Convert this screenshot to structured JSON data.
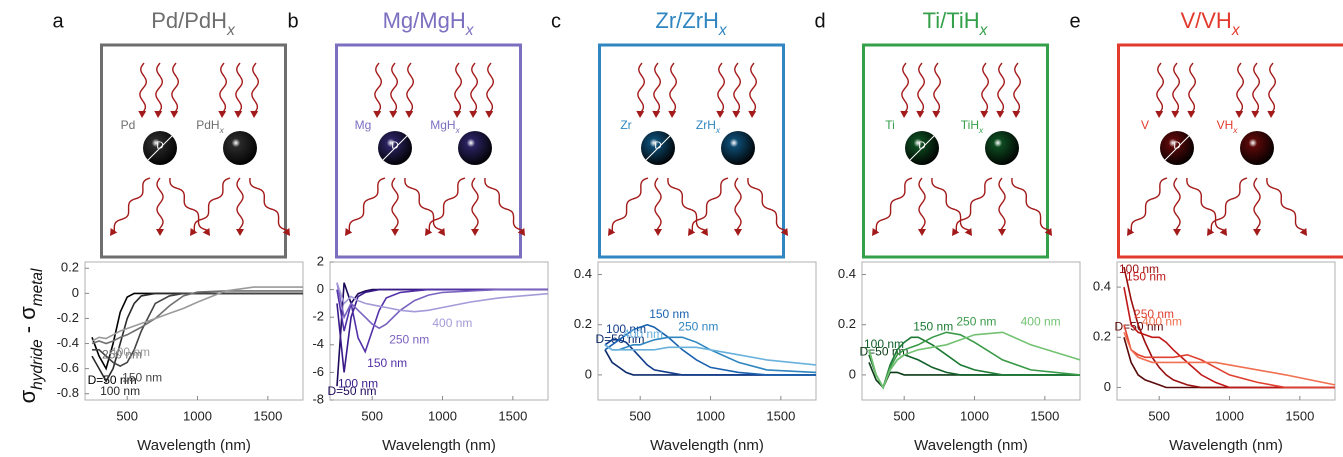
{
  "chart_data": [
    {
      "type": "line",
      "panel": "a",
      "title": [
        {
          "text": "Pd/PdH"
        },
        {
          "text": "x",
          "sub": true
        }
      ],
      "box_color": "#6e6e6e",
      "sphere_color": "#2a2a2a",
      "illustration": {
        "metal_label": "Pd",
        "hydride_label": [
          {
            "text": "PdH"
          },
          {
            "text": "x",
            "sub": true
          }
        ],
        "diameter_label": "D"
      },
      "ylabel": [
        {
          "text": "σ"
        },
        {
          "text": "hydride",
          "sub": true
        },
        {
          "text": " - σ"
        },
        {
          "text": "metal",
          "sub": true
        }
      ],
      "xlabel": "Wavelength (nm)",
      "xlim": [
        200,
        1750
      ],
      "xticks": [
        500,
        1000,
        1500
      ],
      "ylim": [
        -0.85,
        0.25
      ],
      "yticks": [
        0.2,
        0,
        -0.2,
        -0.4,
        -0.6,
        -0.8
      ],
      "x": [
        250,
        300,
        350,
        400,
        450,
        500,
        550,
        600,
        700,
        800,
        900,
        1000,
        1200,
        1400,
        1750
      ],
      "series": [
        {
          "name": "D=50 nm",
          "color": "#000000",
          "values": [
            -0.35,
            -0.5,
            -0.6,
            -0.4,
            -0.15,
            -0.03,
            0,
            0,
            0,
            0,
            0,
            0,
            0,
            0,
            0
          ]
        },
        {
          "name": "100 nm",
          "color": "#2b2b2b",
          "values": [
            -0.5,
            -0.6,
            -0.7,
            -0.6,
            -0.4,
            -0.2,
            -0.08,
            -0.02,
            0,
            0,
            0,
            0,
            0,
            0,
            0
          ]
        },
        {
          "name": "150 nm",
          "color": "#444444",
          "values": [
            -0.45,
            -0.45,
            -0.5,
            -0.55,
            -0.58,
            -0.55,
            -0.45,
            -0.3,
            -0.08,
            -0.02,
            0,
            0,
            0,
            0,
            0
          ]
        },
        {
          "name": "250 nm",
          "color": "#707070",
          "values": [
            -0.4,
            -0.38,
            -0.4,
            -0.38,
            -0.35,
            -0.33,
            -0.3,
            -0.27,
            -0.2,
            -0.1,
            -0.02,
            0.01,
            0.02,
            0.02,
            0.02
          ]
        },
        {
          "name": "400 nm",
          "color": "#9a9a9a",
          "values": [
            -0.38,
            -0.35,
            -0.36,
            -0.33,
            -0.3,
            -0.28,
            -0.26,
            -0.24,
            -0.2,
            -0.16,
            -0.12,
            -0.07,
            0.02,
            0.05,
            0.05
          ]
        }
      ]
    },
    {
      "type": "line",
      "panel": "b",
      "title": [
        {
          "text": "Mg/MgH"
        },
        {
          "text": "x",
          "sub": true
        }
      ],
      "box_color": "#7b6fc0",
      "sphere_color": "#2a2260",
      "illustration": {
        "metal_label": "Mg",
        "hydride_label": [
          {
            "text": "MgH"
          },
          {
            "text": "x",
            "sub": true
          }
        ],
        "diameter_label": "D"
      },
      "xlabel": "Wavelength (nm)",
      "xlim": [
        200,
        1750
      ],
      "xticks": [
        500,
        1000,
        1500
      ],
      "ylim": [
        -8,
        2
      ],
      "yticks": [
        2,
        0,
        -2,
        -4,
        -6,
        -8
      ],
      "x": [
        250,
        300,
        350,
        400,
        450,
        500,
        550,
        600,
        700,
        800,
        900,
        1000,
        1200,
        1400,
        1750
      ],
      "series": [
        {
          "name": "D=50 nm",
          "color": "#1e0a5a",
          "values": [
            -7,
            0.5,
            -1,
            -0.3,
            -0.1,
            0,
            0,
            0,
            0,
            0,
            0,
            0,
            0,
            0,
            0
          ]
        },
        {
          "name": "100 nm",
          "color": "#3a1a8a",
          "values": [
            -1,
            -6,
            -2,
            -0.5,
            -0.2,
            -0.1,
            0,
            0,
            0,
            0,
            0,
            0,
            0,
            0,
            0
          ]
        },
        {
          "name": "150 nm",
          "color": "#5230a8",
          "values": [
            0,
            -3,
            -1,
            -3.5,
            -4.5,
            -3,
            -1.5,
            -0.6,
            -0.2,
            -0.1,
            0,
            0,
            0,
            0,
            0
          ]
        },
        {
          "name": "250 nm",
          "color": "#7a62c0",
          "values": [
            0.5,
            -2,
            -1,
            -1.5,
            -2,
            -2.5,
            -2.8,
            -2.5,
            -1.5,
            -0.8,
            -0.4,
            -0.2,
            -0.1,
            0,
            0
          ]
        },
        {
          "name": "400 nm",
          "color": "#a49ad8",
          "values": [
            0.5,
            -1,
            -0.5,
            -0.8,
            -1,
            -1.1,
            -1.2,
            -1.3,
            -1.5,
            -1.6,
            -1.5,
            -1.3,
            -0.9,
            -0.6,
            -0.3
          ]
        }
      ]
    },
    {
      "type": "line",
      "panel": "c",
      "title": [
        {
          "text": "Zr/ZrH"
        },
        {
          "text": "x",
          "sub": true
        }
      ],
      "box_color": "#2f86c0",
      "sphere_color": "#0d4a70",
      "illustration": {
        "metal_label": "Zr",
        "hydride_label": [
          {
            "text": "ZrH"
          },
          {
            "text": "x",
            "sub": true
          }
        ],
        "diameter_label": "D"
      },
      "xlabel": "Wavelength (nm)",
      "xlim": [
        200,
        1750
      ],
      "xticks": [
        500,
        1000,
        1500
      ],
      "ylim": [
        -0.1,
        0.45
      ],
      "yticks": [
        0,
        0.2,
        0.4
      ],
      "x": [
        250,
        300,
        350,
        400,
        450,
        500,
        550,
        600,
        700,
        800,
        900,
        1000,
        1200,
        1400,
        1750
      ],
      "series": [
        {
          "name": "D=50 nm",
          "color": "#0a2a6a",
          "values": [
            0.1,
            0.05,
            0.03,
            0.01,
            0,
            0,
            0,
            0,
            0,
            0,
            0,
            0,
            0,
            0,
            0
          ]
        },
        {
          "name": "100 nm",
          "color": "#123c8a",
          "values": [
            0.12,
            0.14,
            0.14,
            0.13,
            0.1,
            0.07,
            0.04,
            0.02,
            0.01,
            0,
            0,
            0,
            0,
            0,
            0
          ]
        },
        {
          "name": "150 nm",
          "color": "#1a62b0",
          "values": [
            0.1,
            0.12,
            0.14,
            0.16,
            0.18,
            0.19,
            0.2,
            0.19,
            0.15,
            0.1,
            0.06,
            0.03,
            0.01,
            0,
            0
          ]
        },
        {
          "name": "250 nm",
          "color": "#2f86c0",
          "values": [
            0.12,
            0.1,
            0.1,
            0.11,
            0.12,
            0.12,
            0.13,
            0.14,
            0.15,
            0.15,
            0.13,
            0.1,
            0.05,
            0.02,
            0.01
          ]
        },
        {
          "name": "400 nm",
          "color": "#6ab2dc",
          "values": [
            0.12,
            0.1,
            0.1,
            0.1,
            0.1,
            0.1,
            0.1,
            0.1,
            0.11,
            0.11,
            0.11,
            0.1,
            0.08,
            0.06,
            0.04
          ]
        }
      ]
    },
    {
      "type": "line",
      "panel": "d",
      "title": [
        {
          "text": "Ti/TiH"
        },
        {
          "text": "x",
          "sub": true
        }
      ],
      "box_color": "#35a04a",
      "sphere_color": "#0d4a20",
      "illustration": {
        "metal_label": "Ti",
        "hydride_label": [
          {
            "text": "TiH"
          },
          {
            "text": "x",
            "sub": true
          }
        ],
        "diameter_label": "D"
      },
      "xlabel": "Wavelength (nm)",
      "xlim": [
        200,
        1750
      ],
      "xticks": [
        500,
        1000,
        1500
      ],
      "ylim": [
        -0.1,
        0.45
      ],
      "yticks": [
        0,
        0.2,
        0.4
      ],
      "x": [
        250,
        300,
        350,
        400,
        450,
        500,
        550,
        600,
        700,
        800,
        900,
        1000,
        1200,
        1400,
        1750
      ],
      "series": [
        {
          "name": "D=50 nm",
          "color": "#0a3a16",
          "values": [
            0.05,
            -0.02,
            -0.05,
            0.01,
            0.01,
            0,
            0,
            0,
            0,
            0,
            0,
            0,
            0,
            0,
            0
          ]
        },
        {
          "name": "100 nm",
          "color": "#12602a",
          "values": [
            0.08,
            0,
            -0.05,
            0.02,
            0.06,
            0.08,
            0.07,
            0.06,
            0.03,
            0.01,
            0,
            0,
            0,
            0,
            0
          ]
        },
        {
          "name": "150 nm",
          "color": "#1c7a34",
          "values": [
            0.1,
            0,
            -0.05,
            0.04,
            0.1,
            0.13,
            0.15,
            0.15,
            0.12,
            0.08,
            0.04,
            0.02,
            0,
            0,
            0
          ]
        },
        {
          "name": "250 nm",
          "color": "#3a9a48",
          "values": [
            0.1,
            0,
            -0.05,
            0.03,
            0.08,
            0.1,
            0.11,
            0.12,
            0.15,
            0.17,
            0.16,
            0.13,
            0.06,
            0.02,
            0
          ]
        },
        {
          "name": "400 nm",
          "color": "#72c272",
          "values": [
            0.1,
            0,
            -0.05,
            0.02,
            0.06,
            0.08,
            0.09,
            0.1,
            0.11,
            0.12,
            0.14,
            0.16,
            0.17,
            0.12,
            0.06
          ]
        }
      ]
    },
    {
      "type": "line",
      "panel": "e",
      "title": [
        {
          "text": "V/VH"
        },
        {
          "text": "x",
          "sub": true
        }
      ],
      "box_color": "#e23a2c",
      "sphere_color": "#5a0808",
      "illustration": {
        "metal_label": "V",
        "hydride_label": [
          {
            "text": "VH"
          },
          {
            "text": "x",
            "sub": true
          }
        ],
        "diameter_label": "D"
      },
      "xlabel": "Wavelength (nm)",
      "xlim": [
        200,
        1750
      ],
      "xticks": [
        500,
        1000,
        1500
      ],
      "ylim": [
        -0.05,
        0.5
      ],
      "yticks": [
        0,
        0.2,
        0.4
      ],
      "x": [
        250,
        300,
        350,
        400,
        450,
        500,
        550,
        600,
        700,
        800,
        900,
        1000,
        1200,
        1400,
        1750
      ],
      "series": [
        {
          "name": "D=50 nm",
          "color": "#5a0a0a",
          "values": [
            0.2,
            0.1,
            0.05,
            0.03,
            0.02,
            0.01,
            0,
            0,
            0,
            0,
            0,
            0,
            0,
            0,
            0
          ]
        },
        {
          "name": "100 nm",
          "color": "#9a0e0e",
          "values": [
            0.48,
            0.35,
            0.25,
            0.18,
            0.12,
            0.08,
            0.05,
            0.03,
            0.01,
            0,
            0,
            0,
            0,
            0,
            0
          ]
        },
        {
          "name": "150 nm",
          "color": "#c01818",
          "values": [
            0.4,
            0.25,
            0.22,
            0.21,
            0.2,
            0.2,
            0.18,
            0.15,
            0.1,
            0.05,
            0.02,
            0,
            0,
            0,
            0
          ]
        },
        {
          "name": "250 nm",
          "color": "#e04030",
          "values": [
            0.25,
            0.15,
            0.13,
            0.12,
            0.12,
            0.12,
            0.12,
            0.12,
            0.13,
            0.11,
            0.08,
            0.05,
            0.02,
            0,
            0
          ]
        },
        {
          "name": "400 nm",
          "color": "#f07050",
          "values": [
            0.22,
            0.15,
            0.12,
            0.11,
            0.1,
            0.1,
            0.1,
            0.1,
            0.1,
            0.1,
            0.1,
            0.09,
            0.07,
            0.05,
            0.01
          ]
        }
      ]
    }
  ]
}
